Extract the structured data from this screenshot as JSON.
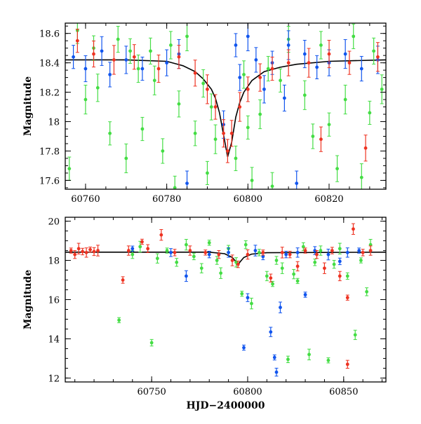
{
  "chart_data": [
    {
      "type": "scatter",
      "panel": "top",
      "xlabel": "",
      "ylabel": "Magnitude",
      "xlim": [
        60755,
        60834
      ],
      "ylim": [
        18.67,
        17.54
      ],
      "y_inverted": true,
      "xticks": [
        60760,
        60780,
        60800,
        60820
      ],
      "xtick_labels": [
        "60760",
        "60780",
        "60800",
        "60820"
      ],
      "yticks": [
        17.6,
        17.8,
        18.0,
        18.2,
        18.4,
        18.6
      ],
      "ytick_labels": [
        "17.6",
        "17.8",
        "18",
        "18.2",
        "18.4",
        "18.6"
      ],
      "colors": {
        "model": "#000000",
        "green": "#44dd44",
        "blue": "#1155ee",
        "red": "#ee3322"
      },
      "model_curve": {
        "x": [
          60755,
          60770,
          60780,
          60784,
          60787,
          60789,
          60791,
          60792,
          60793,
          60794,
          60795,
          60796,
          60797,
          60798,
          60799,
          60801,
          60804,
          60808,
          60812,
          60820,
          60834
        ],
        "y": [
          18.42,
          18.42,
          18.41,
          18.38,
          18.34,
          18.29,
          18.22,
          18.16,
          18.06,
          17.91,
          17.76,
          17.86,
          18.03,
          18.13,
          18.2,
          18.28,
          18.34,
          18.37,
          18.39,
          18.41,
          18.42
        ]
      },
      "series": [
        {
          "color": "green",
          "points": [
            [
              60756,
              17.68
            ],
            [
              60758,
              18.62
            ],
            [
              60760,
              18.15
            ],
            [
              60762,
              18.5
            ],
            [
              60763,
              18.23
            ],
            [
              60766,
              17.92
            ],
            [
              60768,
              18.56
            ],
            [
              60770,
              17.75
            ],
            [
              60771,
              18.48
            ],
            [
              60773,
              18.36
            ],
            [
              60774,
              17.95
            ],
            [
              60776,
              18.48
            ],
            [
              60777,
              18.28
            ],
            [
              60779,
              17.8
            ],
            [
              60781,
              18.52
            ],
            [
              60782,
              17.55
            ],
            [
              60783,
              18.12
            ],
            [
              60785,
              18.58
            ],
            [
              60787,
              17.92
            ],
            [
              60789,
              18.26
            ],
            [
              60790,
              17.65
            ],
            [
              60791,
              18.1
            ],
            [
              60792,
              17.88
            ],
            [
              60797,
              17.75
            ],
            [
              60799,
              18.32
            ],
            [
              60800,
              17.96
            ],
            [
              60801,
              17.6
            ],
            [
              60803,
              18.05
            ],
            [
              60805,
              18.36
            ],
            [
              60806,
              17.56
            ],
            [
              60808,
              18.28
            ],
            [
              60810,
              18.56
            ],
            [
              60814,
              18.18
            ],
            [
              60816,
              17.9
            ],
            [
              60818,
              18.52
            ],
            [
              60820,
              17.98
            ],
            [
              60822,
              17.68
            ],
            [
              60824,
              18.15
            ],
            [
              60826,
              18.58
            ],
            [
              60828,
              17.62
            ],
            [
              60830,
              18.06
            ],
            [
              60831,
              18.48
            ],
            [
              60833,
              18.22
            ]
          ]
        },
        {
          "color": "blue",
          "points": [
            [
              60757,
              18.44
            ],
            [
              60760,
              18.36
            ],
            [
              60764,
              18.48
            ],
            [
              60766,
              18.32
            ],
            [
              60770,
              18.42
            ],
            [
              60774,
              18.36
            ],
            [
              60780,
              18.4
            ],
            [
              60783,
              18.46
            ],
            [
              60785,
              17.58
            ],
            [
              60794,
              17.98
            ],
            [
              60797,
              18.52
            ],
            [
              60798,
              18.3
            ],
            [
              60800,
              18.58
            ],
            [
              60802,
              18.42
            ],
            [
              60804,
              18.22
            ],
            [
              60806,
              18.4
            ],
            [
              60809,
              18.16
            ],
            [
              60810,
              18.52
            ],
            [
              60812,
              17.58
            ],
            [
              60814,
              18.46
            ],
            [
              60817,
              18.37
            ],
            [
              60820,
              18.4
            ],
            [
              60824,
              18.46
            ],
            [
              60828,
              18.36
            ],
            [
              60832,
              18.42
            ]
          ]
        },
        {
          "color": "red",
          "points": [
            [
              60758,
              18.55
            ],
            [
              60762,
              18.46
            ],
            [
              60767,
              18.42
            ],
            [
              60772,
              18.44
            ],
            [
              60778,
              18.36
            ],
            [
              60783,
              18.44
            ],
            [
              60787,
              18.33
            ],
            [
              60790,
              18.22
            ],
            [
              60792,
              18.1
            ],
            [
              60794,
              17.92
            ],
            [
              60795,
              17.8
            ],
            [
              60796,
              17.92
            ],
            [
              60798,
              18.1
            ],
            [
              60800,
              18.22
            ],
            [
              60803,
              18.3
            ],
            [
              60806,
              18.36
            ],
            [
              60810,
              18.4
            ],
            [
              60815,
              18.4
            ],
            [
              60818,
              17.88
            ],
            [
              60820,
              18.46
            ],
            [
              60825,
              18.4
            ],
            [
              60829,
              17.82
            ],
            [
              60832,
              18.44
            ]
          ]
        }
      ]
    },
    {
      "type": "scatter",
      "panel": "bottom",
      "xlabel": "HJD−2400000",
      "ylabel": "Magnitude",
      "xlim": [
        60705,
        60872
      ],
      "ylim": [
        20.2,
        11.8
      ],
      "y_inverted": true,
      "xticks": [
        60750,
        60800,
        60850
      ],
      "xtick_labels": [
        "60750",
        "60800",
        "60850"
      ],
      "yticks": [
        12,
        14,
        16,
        18,
        20
      ],
      "ytick_labels": [
        "12",
        "14",
        "16",
        "18",
        "20"
      ],
      "colors": {
        "model": "#000000",
        "green": "#44dd44",
        "blue": "#1155ee",
        "red": "#ee3322"
      },
      "model_curve": {
        "x": [
          60705,
          60780,
          60788,
          60792,
          60794,
          60795,
          60796,
          60798,
          60802,
          60810,
          60872
        ],
        "y": [
          18.42,
          18.42,
          18.34,
          18.15,
          17.92,
          17.76,
          17.92,
          18.15,
          18.32,
          18.39,
          18.42
        ]
      },
      "series": [
        {
          "color": "green",
          "points": [
            [
              60733,
              14.95
            ],
            [
              60740,
              18.3
            ],
            [
              60744,
              18.7
            ],
            [
              60750,
              13.8
            ],
            [
              60753,
              18.1
            ],
            [
              60758,
              18.5
            ],
            [
              60763,
              17.9
            ],
            [
              60768,
              18.8
            ],
            [
              60772,
              18.2
            ],
            [
              60776,
              17.6
            ],
            [
              60780,
              18.9
            ],
            [
              60784,
              18.0
            ],
            [
              60786,
              17.35
            ],
            [
              60790,
              18.6
            ],
            [
              60794,
              17.9
            ],
            [
              60797,
              16.3
            ],
            [
              60799,
              18.8
            ],
            [
              60802,
              15.8
            ],
            [
              60806,
              18.4
            ],
            [
              60810,
              17.2
            ],
            [
              60813,
              16.8
            ],
            [
              60815,
              18.0
            ],
            [
              60818,
              17.6
            ],
            [
              60821,
              12.95
            ],
            [
              60824,
              17.3
            ],
            [
              60826,
              16.95
            ],
            [
              60829,
              18.7
            ],
            [
              60832,
              13.2
            ],
            [
              60835,
              17.9
            ],
            [
              60838,
              18.5
            ],
            [
              60842,
              12.9
            ],
            [
              60845,
              17.8
            ],
            [
              60848,
              18.6
            ],
            [
              60852,
              17.2
            ],
            [
              60856,
              14.2
            ],
            [
              60859,
              18.0
            ],
            [
              60862,
              16.4
            ],
            [
              60864,
              18.8
            ]
          ]
        },
        {
          "color": "blue",
          "points": [
            [
              60740,
              18.6
            ],
            [
              60760,
              18.4
            ],
            [
              60768,
              17.2
            ],
            [
              60780,
              18.3
            ],
            [
              60790,
              18.4
            ],
            [
              60798,
              13.55
            ],
            [
              60800,
              16.1
            ],
            [
              60804,
              18.5
            ],
            [
              60808,
              18.2
            ],
            [
              60812,
              14.35
            ],
            [
              60814,
              13.05
            ],
            [
              60815,
              12.3
            ],
            [
              60817,
              15.6
            ],
            [
              60820,
              18.3
            ],
            [
              60826,
              18.4
            ],
            [
              60830,
              16.25
            ],
            [
              60835,
              18.5
            ],
            [
              60842,
              18.3
            ],
            [
              60848,
              17.95
            ],
            [
              60852,
              18.4
            ],
            [
              60858,
              18.5
            ]
          ]
        },
        {
          "color": "red",
          "points": [
            [
              60708,
              18.5
            ],
            [
              60710,
              18.3
            ],
            [
              60712,
              18.6
            ],
            [
              60714,
              18.45
            ],
            [
              60716,
              18.4
            ],
            [
              60718,
              18.55
            ],
            [
              60720,
              18.45
            ],
            [
              60722,
              18.5
            ],
            [
              60735,
              17.0
            ],
            [
              60738,
              18.5
            ],
            [
              60745,
              18.95
            ],
            [
              60748,
              18.6
            ],
            [
              60755,
              19.3
            ],
            [
              60762,
              18.4
            ],
            [
              60770,
              18.5
            ],
            [
              60778,
              18.4
            ],
            [
              60785,
              18.3
            ],
            [
              60792,
              18.0
            ],
            [
              60795,
              17.8
            ],
            [
              60800,
              18.3
            ],
            [
              60808,
              18.4
            ],
            [
              60812,
              17.1
            ],
            [
              60818,
              18.4
            ],
            [
              60822,
              18.3
            ],
            [
              60826,
              17.7
            ],
            [
              60830,
              18.5
            ],
            [
              60836,
              18.3
            ],
            [
              60840,
              17.6
            ],
            [
              60844,
              18.5
            ],
            [
              60848,
              17.2
            ],
            [
              60852,
              16.1
            ],
            [
              60852,
              12.7
            ],
            [
              60855,
              19.6
            ],
            [
              60860,
              18.4
            ],
            [
              60864,
              18.5
            ]
          ]
        }
      ]
    }
  ]
}
